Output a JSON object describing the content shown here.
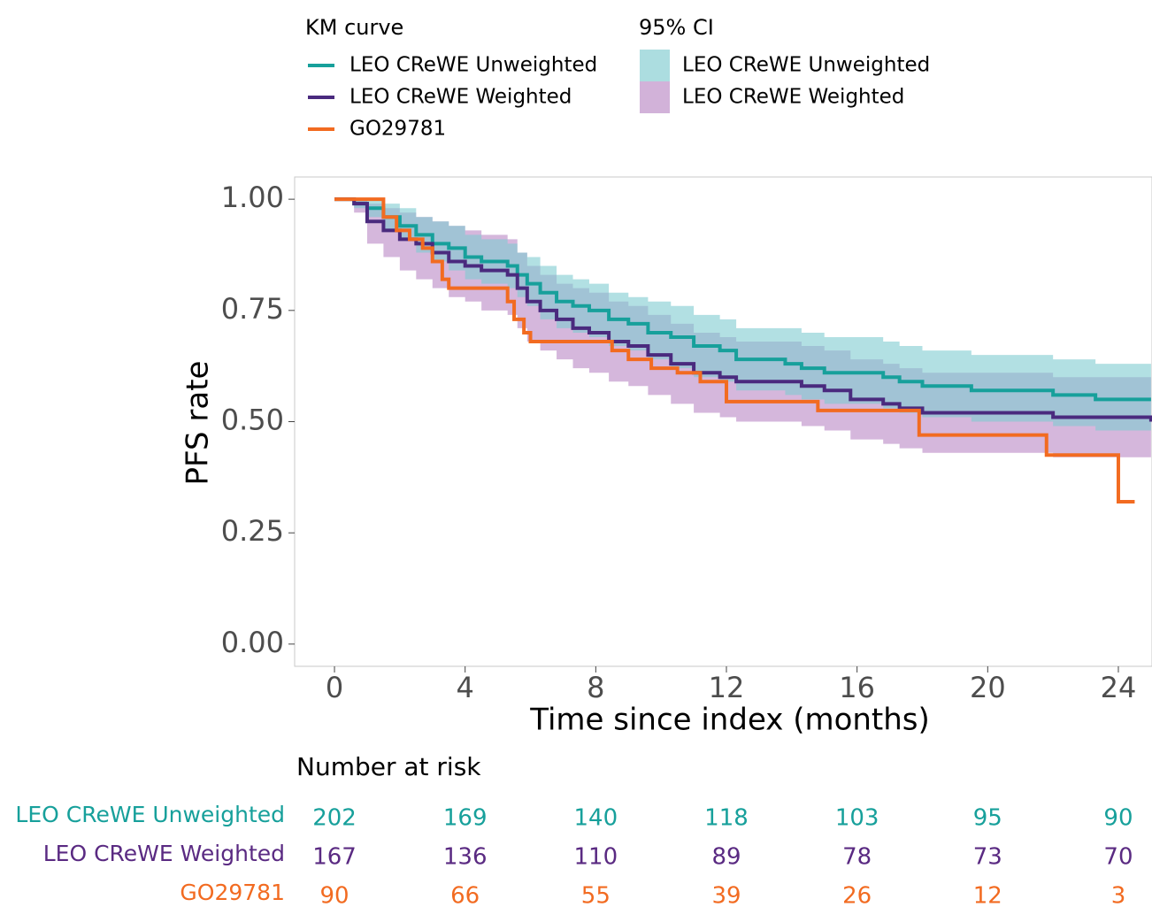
{
  "chart_data": {
    "type": "km",
    "x_label": "Time since index (months)",
    "y_label": "PFS rate",
    "legend_title": "KM curve",
    "ci_legend_title": "95% CI",
    "xlim": [
      -1.22,
      25.03
    ],
    "ylim": [
      -0.05,
      1.05
    ],
    "xticks": [
      0,
      4,
      8,
      12,
      16,
      20,
      24
    ],
    "yticks": [
      {
        "value": 0,
        "label": "0.00"
      },
      {
        "value": 0.25,
        "label": "0.25"
      },
      {
        "value": 0.5,
        "label": "0.50"
      },
      {
        "value": 0.75,
        "label": "0.75"
      },
      {
        "value": 1,
        "label": "1.00"
      }
    ],
    "series": [
      {
        "name": "LEO CReWE Unweighted",
        "color": "#17a09b",
        "ci_color": "#7fcbd0",
        "x": [
          0,
          0.6,
          1,
          1.5,
          2,
          2.5,
          3,
          3.5,
          4,
          4.5,
          5.3,
          5.6,
          5.9,
          6.3,
          6.8,
          7.3,
          7.8,
          8.4,
          9,
          9.6,
          10.3,
          11,
          11.8,
          12.3,
          13.8,
          14.3,
          15,
          16.8,
          17.3,
          18,
          19.5,
          22,
          23.3,
          25
        ],
        "values": [
          1,
          0.99,
          0.98,
          0.96,
          0.94,
          0.92,
          0.9,
          0.89,
          0.87,
          0.86,
          0.85,
          0.83,
          0.81,
          0.79,
          0.77,
          0.76,
          0.75,
          0.73,
          0.72,
          0.7,
          0.69,
          0.67,
          0.66,
          0.64,
          0.63,
          0.62,
          0.61,
          0.6,
          0.59,
          0.58,
          0.57,
          0.56,
          0.55,
          0.55
        ],
        "upper": [
          1,
          1,
          1,
          0.99,
          0.98,
          0.96,
          0.95,
          0.94,
          0.92,
          0.91,
          0.9,
          0.88,
          0.87,
          0.85,
          0.83,
          0.82,
          0.81,
          0.79,
          0.78,
          0.77,
          0.76,
          0.74,
          0.73,
          0.71,
          0.71,
          0.7,
          0.69,
          0.68,
          0.67,
          0.66,
          0.65,
          0.64,
          0.63,
          0.63
        ],
        "lower": [
          1,
          0.98,
          0.96,
          0.93,
          0.91,
          0.88,
          0.86,
          0.84,
          0.82,
          0.81,
          0.8,
          0.78,
          0.76,
          0.73,
          0.71,
          0.7,
          0.69,
          0.67,
          0.66,
          0.64,
          0.62,
          0.6,
          0.59,
          0.57,
          0.56,
          0.55,
          0.54,
          0.53,
          0.52,
          0.51,
          0.5,
          0.49,
          0.48,
          0.48
        ]
      },
      {
        "name": "LEO CReWE Weighted",
        "color": "#4a2a7e",
        "ci_color": "#c79fd0",
        "x": [
          0,
          0.6,
          1,
          1.5,
          2,
          2.5,
          3,
          3.5,
          4,
          4.5,
          5.3,
          5.6,
          5.9,
          6.3,
          6.8,
          7.3,
          7.8,
          8.4,
          9,
          9.6,
          10.3,
          11,
          11.8,
          12.3,
          13.8,
          14.3,
          15,
          15.8,
          16.8,
          17.3,
          18,
          19.5,
          22,
          23.3,
          25
        ],
        "values": [
          1,
          0.99,
          0.95,
          0.93,
          0.91,
          0.9,
          0.88,
          0.86,
          0.85,
          0.84,
          0.83,
          0.8,
          0.77,
          0.75,
          0.73,
          0.71,
          0.7,
          0.68,
          0.67,
          0.65,
          0.63,
          0.61,
          0.6,
          0.59,
          0.59,
          0.58,
          0.57,
          0.55,
          0.54,
          0.53,
          0.52,
          0.52,
          0.51,
          0.51,
          0.5
        ],
        "upper": [
          1,
          1,
          0.99,
          0.98,
          0.97,
          0.96,
          0.95,
          0.94,
          0.93,
          0.92,
          0.91,
          0.88,
          0.85,
          0.83,
          0.81,
          0.8,
          0.79,
          0.77,
          0.76,
          0.74,
          0.72,
          0.7,
          0.69,
          0.68,
          0.68,
          0.67,
          0.66,
          0.64,
          0.63,
          0.62,
          0.61,
          0.61,
          0.6,
          0.6,
          0.59
        ],
        "lower": [
          1,
          0.97,
          0.9,
          0.87,
          0.84,
          0.82,
          0.8,
          0.78,
          0.77,
          0.75,
          0.74,
          0.71,
          0.68,
          0.66,
          0.64,
          0.62,
          0.61,
          0.59,
          0.58,
          0.56,
          0.54,
          0.52,
          0.51,
          0.5,
          0.5,
          0.49,
          0.48,
          0.46,
          0.45,
          0.44,
          0.43,
          0.43,
          0.42,
          0.42,
          0.42
        ]
      },
      {
        "name": "GO29781",
        "color": "#f26b21",
        "x": [
          0,
          1.5,
          1.9,
          2.3,
          2.7,
          3.0,
          3.3,
          3.5,
          5.3,
          5.5,
          5.8,
          6.0,
          8.5,
          9.0,
          9.7,
          10.5,
          11.2,
          12.0,
          14.8,
          17.9,
          21.8,
          24.0,
          24.5
        ],
        "values": [
          1,
          0.96,
          0.93,
          0.91,
          0.89,
          0.86,
          0.82,
          0.8,
          0.77,
          0.73,
          0.7,
          0.68,
          0.66,
          0.64,
          0.62,
          0.61,
          0.59,
          0.545,
          0.525,
          0.47,
          0.425,
          0.32,
          0.32
        ]
      }
    ],
    "risk_table": {
      "title": "Number at risk",
      "rows": [
        {
          "name": "LEO CReWE Unweighted",
          "color": "#17a09b",
          "counts": [
            202,
            169,
            140,
            118,
            103,
            95,
            90
          ]
        },
        {
          "name": "LEO CReWE Weighted",
          "color": "#5a2a82",
          "counts": [
            167,
            136,
            110,
            89,
            78,
            73,
            70
          ]
        },
        {
          "name": "GO29781",
          "color": "#f26b21",
          "counts": [
            90,
            66,
            55,
            39,
            26,
            12,
            3
          ]
        }
      ]
    }
  }
}
